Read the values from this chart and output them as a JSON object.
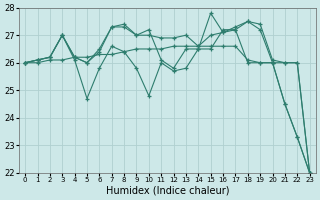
{
  "xlabel": "Humidex (Indice chaleur)",
  "x": [
    0,
    1,
    2,
    3,
    4,
    5,
    6,
    7,
    8,
    9,
    10,
    11,
    12,
    13,
    14,
    15,
    16,
    17,
    18,
    19,
    20,
    21,
    22,
    23
  ],
  "series": [
    [
      26.0,
      26.0,
      26.1,
      26.1,
      26.2,
      26.2,
      26.3,
      26.3,
      26.4,
      26.5,
      26.5,
      26.5,
      26.6,
      26.6,
      26.6,
      26.6,
      26.6,
      26.6,
      26.1,
      26.0,
      26.0,
      26.0,
      26.0,
      22.0
    ],
    [
      26.0,
      26.1,
      26.2,
      27.0,
      26.2,
      26.0,
      26.4,
      27.3,
      27.4,
      27.0,
      27.0,
      26.9,
      26.9,
      27.0,
      26.6,
      27.0,
      27.1,
      27.3,
      27.5,
      27.4,
      26.1,
      26.0,
      26.0,
      22.0
    ],
    [
      26.0,
      26.1,
      26.2,
      27.0,
      26.2,
      26.0,
      26.5,
      27.3,
      27.3,
      27.0,
      27.2,
      26.1,
      25.8,
      26.5,
      26.5,
      27.8,
      27.1,
      27.2,
      27.5,
      27.2,
      26.0,
      24.5,
      23.3,
      22.0
    ],
    [
      26.0,
      26.1,
      26.2,
      27.0,
      26.1,
      24.7,
      25.8,
      26.6,
      26.4,
      25.8,
      24.8,
      26.0,
      25.7,
      25.8,
      26.5,
      26.5,
      27.2,
      27.2,
      26.0,
      26.0,
      26.0,
      24.5,
      23.3,
      22.0
    ]
  ],
  "line_color": "#2e7d6e",
  "bg_color": "#cde8e8",
  "grid_color": "#b0d0d0",
  "ylim": [
    22,
    28
  ],
  "yticks": [
    22,
    23,
    24,
    25,
    26,
    27,
    28
  ]
}
